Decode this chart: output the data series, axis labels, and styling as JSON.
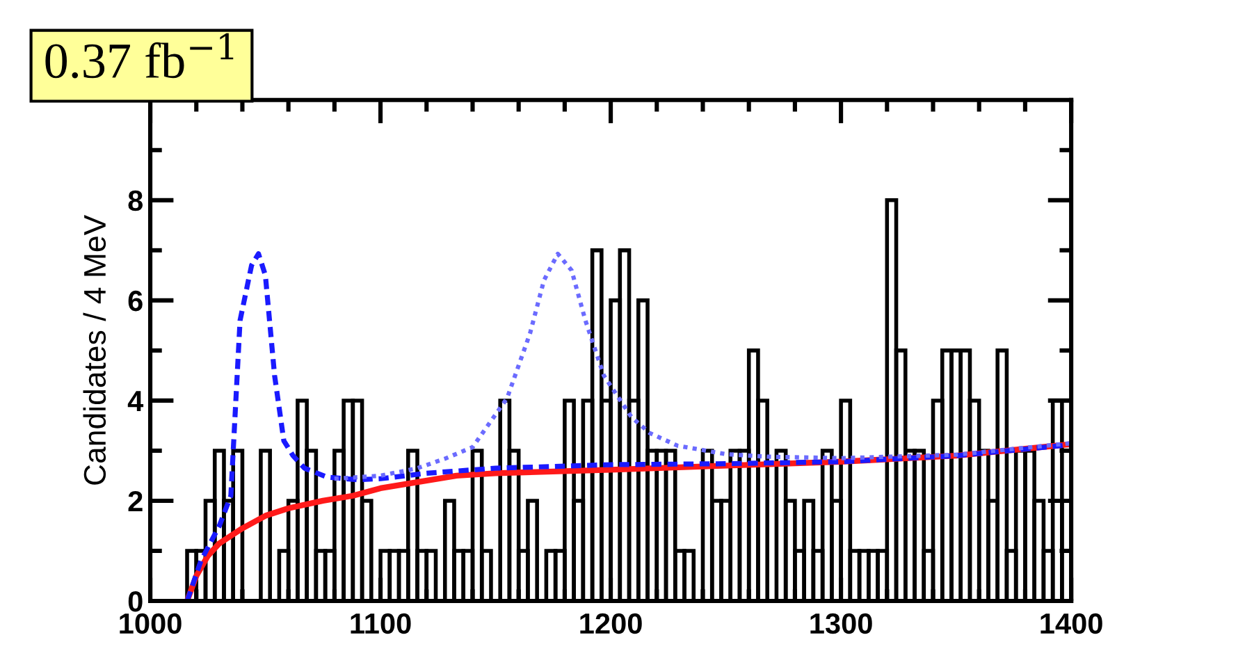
{
  "chart_data": {
    "type": "histogram",
    "ylabel": "Candidates / 4 MeV",
    "annotations": [
      "0.37 fb$^{−1}$"
    ],
    "bins": [
      1016,
      1020,
      1024,
      1028,
      1032,
      1036,
      1040,
      1044,
      1048,
      1052,
      1056,
      1060,
      1064,
      1068,
      1072,
      1076,
      1080,
      1084,
      1088,
      1092,
      1096,
      1100,
      1104,
      1108,
      1112,
      1116,
      1120,
      1124,
      1128,
      1132,
      1136,
      1140,
      1144,
      1148,
      1152,
      1156,
      1160,
      1164,
      1168,
      1172,
      1176,
      1180,
      1184,
      1188,
      1192,
      1196,
      1200,
      1204,
      1208,
      1212,
      1216,
      1220,
      1224,
      1228,
      1232,
      1236,
      1240,
      1244,
      1248,
      1252,
      1256,
      1260,
      1264,
      1268,
      1272,
      1276,
      1280,
      1284,
      1288,
      1292,
      1296,
      1300,
      1304,
      1308,
      1312,
      1316,
      1320,
      1324,
      1328,
      1332,
      1336,
      1340,
      1344,
      1348,
      1352,
      1356,
      1360,
      1364,
      1368,
      1372,
      1376,
      1380,
      1384,
      1388,
      1392,
      1396,
      1400
    ],
    "values": [
      1,
      1,
      2,
      3,
      2,
      3,
      0,
      0,
      3,
      0,
      1,
      2,
      4,
      3,
      1,
      1,
      3,
      4,
      4,
      2,
      0,
      1,
      1,
      1,
      3,
      1,
      1,
      0,
      2,
      1,
      1,
      3,
      1,
      0,
      4,
      3,
      1,
      2,
      0,
      1,
      1,
      4,
      2,
      4,
      7,
      4,
      6,
      7,
      4,
      6,
      3,
      3,
      3,
      1,
      1,
      0,
      3,
      2,
      2,
      3,
      3,
      5,
      4,
      0,
      3,
      2,
      1,
      2,
      1,
      3,
      2,
      4,
      1,
      1,
      1,
      1,
      8,
      5,
      3,
      3,
      1,
      4,
      5,
      5,
      5,
      4,
      3,
      2,
      5,
      1,
      3,
      3,
      2,
      1,
      4,
      2
    ],
    "color": "#000000",
    "series": [
      {
        "type": "line",
        "color": "#ff1a1a",
        "line_style": "solid",
        "x": [
          1016,
          1020,
          1025,
          1030,
          1040,
          1050,
          1060,
          1075,
          1088,
          1100,
          1133,
          1150,
          1200,
          1262,
          1300,
          1350,
          1400
        ],
        "values": [
          0,
          0.5,
          0.9,
          1.15,
          1.45,
          1.7,
          1.85,
          2.0,
          2.1,
          2.25,
          2.5,
          2.55,
          2.62,
          2.72,
          2.78,
          2.9,
          3.13
        ]
      },
      {
        "type": "line",
        "color": "#1a1aff",
        "line_style": "dashed",
        "x": [
          1016,
          1022,
          1030,
          1035,
          1039,
          1044,
          1047,
          1050,
          1054,
          1058,
          1062,
          1067,
          1077,
          1090,
          1100,
          1120,
          1150,
          1200,
          1250,
          1300,
          1350,
          1400
        ],
        "values": [
          0,
          0.8,
          1.5,
          2.1,
          5.6,
          6.7,
          6.93,
          6.5,
          4.5,
          3.2,
          2.9,
          2.65,
          2.47,
          2.42,
          2.44,
          2.55,
          2.65,
          2.72,
          2.74,
          2.78,
          2.9,
          3.12
        ]
      },
      {
        "type": "line",
        "color": "#6b6bff",
        "line_style": "dotted",
        "x": [
          1080,
          1100,
          1116,
          1128,
          1140,
          1155,
          1165,
          1171,
          1177,
          1183,
          1189,
          1197,
          1209,
          1217,
          1229,
          1250,
          1268,
          1300,
          1350,
          1400
        ],
        "values": [
          2.44,
          2.5,
          2.65,
          2.84,
          3.07,
          4.05,
          5.35,
          6.4,
          6.93,
          6.6,
          5.6,
          4.5,
          3.67,
          3.35,
          3.1,
          2.93,
          2.88,
          2.85,
          2.92,
          3.15
        ]
      }
    ],
    "xlim": [
      1000,
      1400
    ],
    "ylim": [
      0,
      10
    ],
    "xticks": [
      1000,
      {
        "value": 1020,
        "label": null
      },
      {
        "value": 1040,
        "label": null
      },
      {
        "value": 1060,
        "label": null
      },
      {
        "value": 1080,
        "label": null
      },
      1100,
      {
        "value": 1120,
        "label": null
      },
      {
        "value": 1140,
        "label": null
      },
      {
        "value": 1160,
        "label": null
      },
      {
        "value": 1180,
        "label": null
      },
      1200,
      {
        "value": 1220,
        "label": null
      },
      {
        "value": 1240,
        "label": null
      },
      {
        "value": 1260,
        "label": null
      },
      {
        "value": 1280,
        "label": null
      },
      1300,
      {
        "value": 1320,
        "label": null
      },
      {
        "value": 1340,
        "label": null
      },
      {
        "value": 1360,
        "label": null
      },
      {
        "value": 1380,
        "label": null
      },
      1400
    ],
    "yticks": [
      0,
      {
        "value": 1,
        "label": null
      },
      2,
      {
        "value": 3,
        "label": null
      },
      4,
      {
        "value": 5,
        "label": null
      },
      6,
      {
        "value": 7,
        "label": null
      },
      8,
      {
        "value": 9,
        "label": null
      }
    ],
    "grid": false,
    "legend": false
  }
}
